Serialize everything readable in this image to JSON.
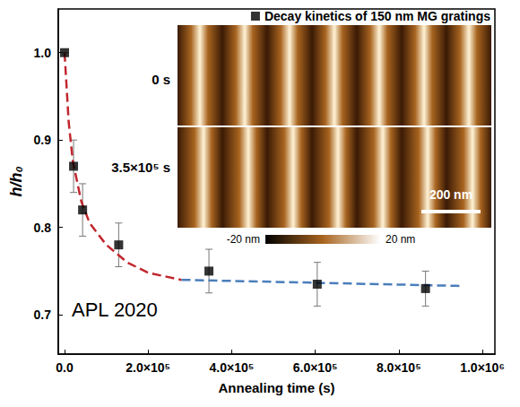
{
  "chart_data": {
    "type": "scatter",
    "xlabel": "Annealing time (s)",
    "ylabel": "h/h₀",
    "xlim": [
      -15000,
      1030000
    ],
    "ylim": [
      0.655,
      1.05
    ],
    "xticks": [
      {
        "value": 0,
        "label": "0.0"
      },
      {
        "value": 200000,
        "label": "2.0×10⁵"
      },
      {
        "value": 400000,
        "label": "4.0×10⁵"
      },
      {
        "value": 600000,
        "label": "6.0×10⁵"
      },
      {
        "value": 800000,
        "label": "8.0×10⁵"
      },
      {
        "value": 1000000,
        "label": "1.0×10⁶"
      }
    ],
    "yticks": [
      0.7,
      0.8,
      0.9,
      {
        "value": 1,
        "label": "1.0"
      }
    ],
    "grid": false,
    "legend": "upper right",
    "series": [
      {
        "name": "Decay kinetics of 150 nm MG gratings",
        "type": "scatter",
        "marker": "square",
        "color": "#000000",
        "x": [
          0,
          21600,
          43200,
          129600,
          345600,
          604800,
          864000
        ],
        "values": [
          1.0,
          0.87,
          0.82,
          0.78,
          0.75,
          0.735,
          0.73
        ],
        "error": [
          0,
          0.03,
          0.03,
          0.025,
          0.025,
          0.025,
          0.02
        ]
      },
      {
        "type": "line",
        "line_style": "dashed",
        "color": "#c0272d",
        "x": [
          0,
          10000,
          20000,
          40000,
          60000,
          100000,
          150000,
          200000,
          280000
        ],
        "values": [
          1.0,
          0.92,
          0.875,
          0.83,
          0.805,
          0.78,
          0.76,
          0.748,
          0.74
        ]
      },
      {
        "type": "line",
        "line_style": "dashed",
        "color": "#4a7ebb",
        "x": [
          280000,
          950000
        ],
        "values": [
          0.74,
          0.733
        ]
      }
    ],
    "annotations": [
      {
        "text": "APL 2020"
      }
    ],
    "inset": {
      "labels": [
        "0 s",
        "3.5×10⁵ s"
      ],
      "scale_bar": "200 nm",
      "colorbar_labels": [
        "-20 nm",
        "20 nm"
      ]
    }
  }
}
